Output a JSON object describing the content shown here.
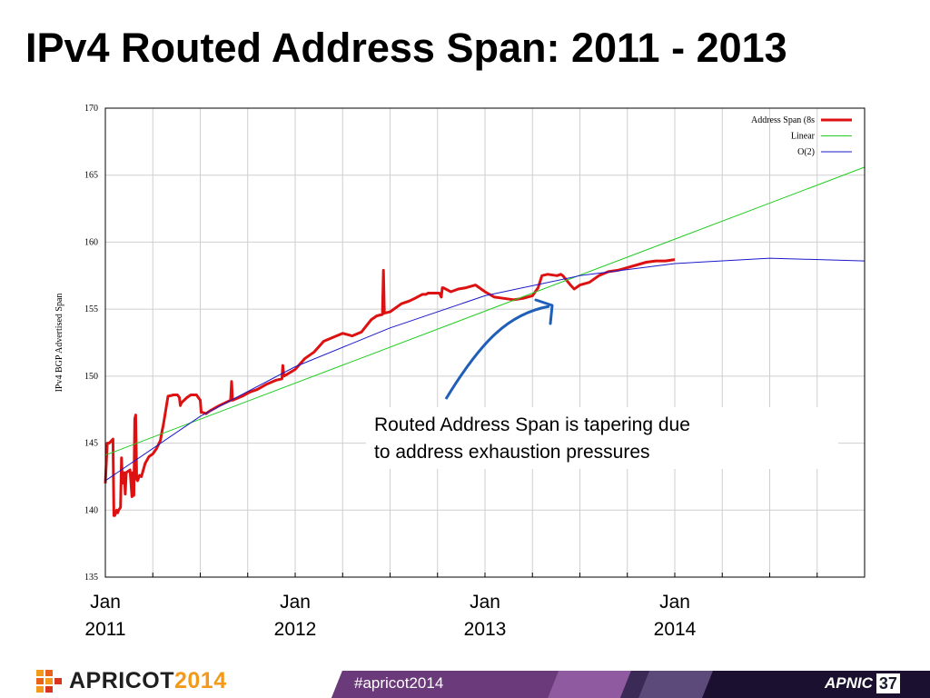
{
  "slide": {
    "title": "IPv4 Routed Address Span: 2011 - 2013"
  },
  "chart_data": {
    "type": "line",
    "title": "",
    "xlabel": "",
    "ylabel": "IPv4 BGP Advertised Span",
    "xlim": [
      2011.0,
      2015.0
    ],
    "ylim": [
      135,
      170
    ],
    "yticks": [
      135,
      140,
      145,
      150,
      155,
      160,
      165,
      170
    ],
    "grid": true,
    "legend_position": "top-right",
    "date_ticks": [
      {
        "x": 2011.0,
        "month": "Jan",
        "year": "2011"
      },
      {
        "x": 2012.0,
        "month": "Jan",
        "year": "2012"
      },
      {
        "x": 2013.0,
        "month": "Jan",
        "year": "2013"
      },
      {
        "x": 2014.0,
        "month": "Jan",
        "year": "2014"
      }
    ],
    "series": [
      {
        "name": "Address Span (8s",
        "color": "#dd1111",
        "style": "thick",
        "x": [
          2011.0,
          2011.01,
          2011.02,
          2011.04,
          2011.045,
          2011.05,
          2011.06,
          2011.065,
          2011.07,
          2011.08,
          2011.085,
          2011.09,
          2011.1,
          2011.105,
          2011.11,
          2011.13,
          2011.14,
          2011.145,
          2011.15,
          2011.155,
          2011.16,
          2011.165,
          2011.17,
          2011.18,
          2011.19,
          2011.21,
          2011.23,
          2011.25,
          2011.27,
          2011.29,
          2011.3,
          2011.305,
          2011.33,
          2011.36,
          2011.38,
          2011.39,
          2011.395,
          2011.4,
          2011.43,
          2011.45,
          2011.48,
          2011.5,
          2011.505,
          2011.51,
          2011.53,
          2011.55,
          2011.6,
          2011.63,
          2011.66,
          2011.665,
          2011.67,
          2011.72,
          2011.76,
          2011.8,
          2011.85,
          2011.9,
          2011.93,
          2011.935,
          2011.94,
          2012.0,
          2012.05,
          2012.1,
          2012.15,
          2012.2,
          2012.25,
          2012.3,
          2012.35,
          2012.4,
          2012.43,
          2012.46,
          2012.465,
          2012.47,
          2012.5,
          2012.56,
          2012.6,
          2012.63,
          2012.67,
          2012.685,
          2012.69,
          2012.7,
          2012.72,
          2012.76,
          2012.77,
          2012.775,
          2012.78,
          2012.82,
          2012.86,
          2012.9,
          2012.95,
          2013.0,
          2013.05,
          2013.1,
          2013.15,
          2013.2,
          2013.25,
          2013.28,
          2013.3,
          2013.33,
          2013.38,
          2013.4,
          2013.41,
          2013.45,
          2013.47,
          2013.48,
          2013.5,
          2013.55,
          2013.6,
          2013.65,
          2013.7,
          2013.75,
          2013.8,
          2013.85,
          2013.9,
          2013.95,
          2014.0
        ],
        "y": [
          142.0,
          145.0,
          145.0,
          145.3,
          139.6,
          139.6,
          140.0,
          139.8,
          140.0,
          140.2,
          143.9,
          142.0,
          142.8,
          141.2,
          142.8,
          143.0,
          141.0,
          142.8,
          141.1,
          146.8,
          147.1,
          142.3,
          142.2,
          142.6,
          142.5,
          143.5,
          144.0,
          144.2,
          144.6,
          145.2,
          146.0,
          146.3,
          148.5,
          148.6,
          148.6,
          148.4,
          147.8,
          148.0,
          148.4,
          148.6,
          148.6,
          148.2,
          147.3,
          147.3,
          147.2,
          147.4,
          147.8,
          148.0,
          148.2,
          149.6,
          148.2,
          148.5,
          148.8,
          149.0,
          149.4,
          149.7,
          149.8,
          150.8,
          150.0,
          150.5,
          151.3,
          151.8,
          152.6,
          152.9,
          153.2,
          153.0,
          153.3,
          154.2,
          154.5,
          154.6,
          157.9,
          154.7,
          154.8,
          155.4,
          155.6,
          155.8,
          156.1,
          156.1,
          156.1,
          156.2,
          156.2,
          156.2,
          155.9,
          156.6,
          156.6,
          156.3,
          156.5,
          156.6,
          156.8,
          156.3,
          155.9,
          155.8,
          155.7,
          155.8,
          156.0,
          156.6,
          157.5,
          157.6,
          157.5,
          157.6,
          157.5,
          156.8,
          156.5,
          156.6,
          156.8,
          157.0,
          157.5,
          157.8,
          157.9,
          158.1,
          158.3,
          158.5,
          158.6,
          158.6,
          158.7
        ]
      },
      {
        "name": "Linear",
        "color": "#22cc22",
        "style": "thin",
        "x": [
          2011.0,
          2015.0
        ],
        "y": [
          144.1,
          165.6
        ]
      },
      {
        "name": "O(2)",
        "color": "#1a1acc",
        "style": "thin",
        "x": [
          2011.0,
          2011.5,
          2012.0,
          2012.5,
          2013.0,
          2013.5,
          2014.0,
          2014.5,
          2015.0
        ],
        "y": [
          142.2,
          147.0,
          150.7,
          153.6,
          156.0,
          157.5,
          158.4,
          158.8,
          158.6
        ]
      }
    ],
    "annotation": {
      "text_lines": [
        "Routed Address Span is tapering due",
        "to address exhaustion pressures"
      ]
    }
  },
  "footer": {
    "logo_word": "APRICOT",
    "logo_year": "2014",
    "hashtag": "#apricot2014",
    "apnic_word": "APNIC",
    "apnic_number": "37"
  }
}
